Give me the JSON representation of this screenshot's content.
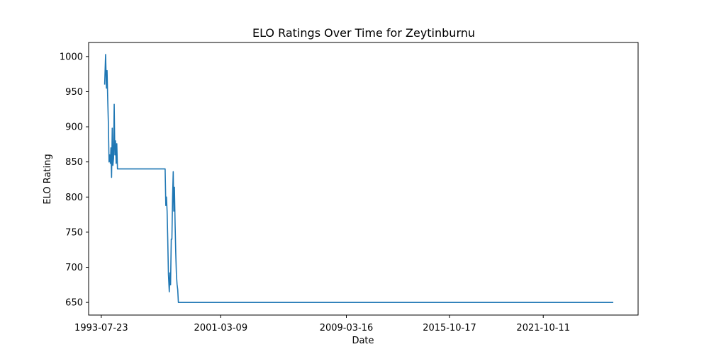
{
  "chart_data": {
    "type": "line",
    "title": "ELO Ratings Over Time for Zeytinburnu",
    "xlabel": "Date",
    "ylabel": "ELO Rating",
    "x_ticks": [
      "1993-07-23",
      "2001-03-09",
      "2009-03-16",
      "2015-10-17",
      "2021-10-11"
    ],
    "y_ticks": [
      650,
      700,
      750,
      800,
      850,
      900,
      950,
      1000
    ],
    "xlim": [
      "1992-10-01",
      "2027-11-01"
    ],
    "ylim": [
      632,
      1020
    ],
    "grid": false,
    "series": [
      {
        "color": "#1f77b4",
        "x": [
          "1993-10-10",
          "1993-11-01",
          "1993-11-20",
          "1993-12-05",
          "1993-12-20",
          "1994-01-05",
          "1994-01-20",
          "1994-02-05",
          "1994-02-20",
          "1994-03-05",
          "1994-03-20",
          "1994-04-05",
          "1994-04-20",
          "1994-05-05",
          "1994-05-20",
          "1994-06-05",
          "1994-06-20",
          "1994-07-05",
          "1994-07-20",
          "1994-08-05",
          "1994-08-20",
          "1994-09-05",
          "1994-09-25",
          "1994-10-10",
          "1994-10-25",
          "1994-11-10",
          "1994-11-25",
          "1994-12-10",
          "1994-12-25",
          "1995-01-10",
          "1995-01-25",
          "1995-02-10",
          "1995-02-25",
          "1995-03-10",
          "1995-03-25",
          "1995-04-10",
          "1995-04-25",
          "1995-05-10",
          "1995-05-25",
          "1995-06-10",
          "1995-07-01",
          "1997-08-20",
          "1997-09-05",
          "1997-09-20",
          "1997-10-05",
          "1997-10-20",
          "1997-11-05",
          "1997-11-25",
          "1997-12-10",
          "1997-12-25",
          "1998-01-10",
          "1998-01-25",
          "1998-02-10",
          "1998-02-25",
          "1998-03-10",
          "1998-03-25",
          "1998-04-10",
          "1998-04-25",
          "1998-05-10",
          "1998-05-25",
          "1998-06-10",
          "1998-06-25",
          "1998-07-10",
          "1998-07-25",
          "1998-08-10",
          "1998-08-25",
          "1998-09-10",
          "1998-09-25",
          "1998-10-10",
          "1998-10-25",
          "1998-11-10",
          "1998-11-25",
          "1998-12-10",
          "1998-12-25",
          "1999-01-10",
          "1999-02-01",
          "1999-03-01",
          "2003-01-01",
          "2010-01-01",
          "2020-01-01",
          "2026-04-01"
        ],
        "y": [
          960,
          1003,
          955,
          980,
          940,
          904,
          850,
          860,
          848,
          870,
          828,
          898,
          845,
          855,
          932,
          860,
          880,
          848,
          876,
          840,
          840,
          840,
          840,
          840,
          840,
          840,
          840,
          840,
          840,
          840,
          840,
          840,
          840,
          840,
          840,
          840,
          840,
          840,
          840,
          840,
          840,
          840,
          788,
          800,
          780,
          740,
          690,
          665,
          692,
          675,
          740,
          740,
          800,
          836,
          780,
          814,
          760,
          720,
          690,
          676,
          668,
          650,
          650,
          650,
          650,
          650,
          650,
          650,
          650,
          650,
          650,
          650,
          650,
          650,
          650,
          650,
          650,
          650,
          650,
          650,
          650
        ]
      }
    ]
  }
}
